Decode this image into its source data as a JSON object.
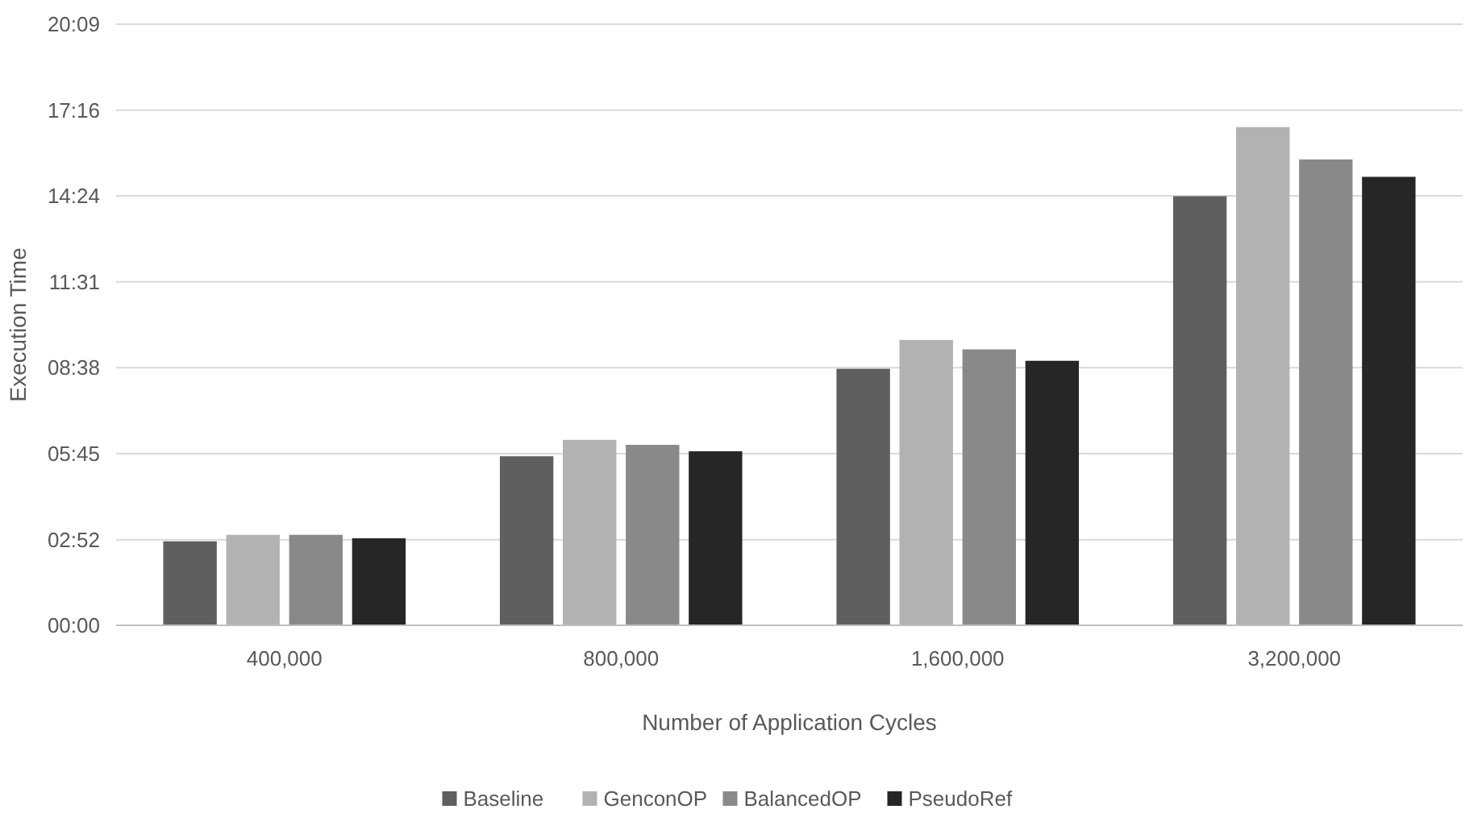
{
  "chart_data": {
    "type": "bar",
    "xlabel": "Number of Application Cycles",
    "ylabel": "Execution Time",
    "categories": [
      "400,000",
      "800,000",
      "1,600,000",
      "3,200,000"
    ],
    "series": [
      {
        "name": "Baseline",
        "color": "#5f5f5f",
        "values": [
          169,
          340,
          516,
          863
        ]
      },
      {
        "name": "GenconOP",
        "color": "#b2b2b2",
        "values": [
          182,
          373,
          574,
          1002
        ]
      },
      {
        "name": "BalancedOP",
        "color": "#898989",
        "values": [
          182,
          363,
          555,
          937
        ]
      },
      {
        "name": "PseudoRef",
        "color": "#262626",
        "values": [
          175,
          350,
          532,
          902
        ]
      }
    ],
    "ylim": [
      0,
      1209
    ],
    "yticks": [
      {
        "value": 0,
        "label": "00:00"
      },
      {
        "value": 172,
        "label": "02:52"
      },
      {
        "value": 345,
        "label": "05:45"
      },
      {
        "value": 518,
        "label": "08:38"
      },
      {
        "value": 691,
        "label": "11:31"
      },
      {
        "value": 864,
        "label": "14:24"
      },
      {
        "value": 1036,
        "label": "17:16"
      },
      {
        "value": 1209,
        "label": "20:09"
      }
    ],
    "grid": "y",
    "legend": "bottom"
  }
}
